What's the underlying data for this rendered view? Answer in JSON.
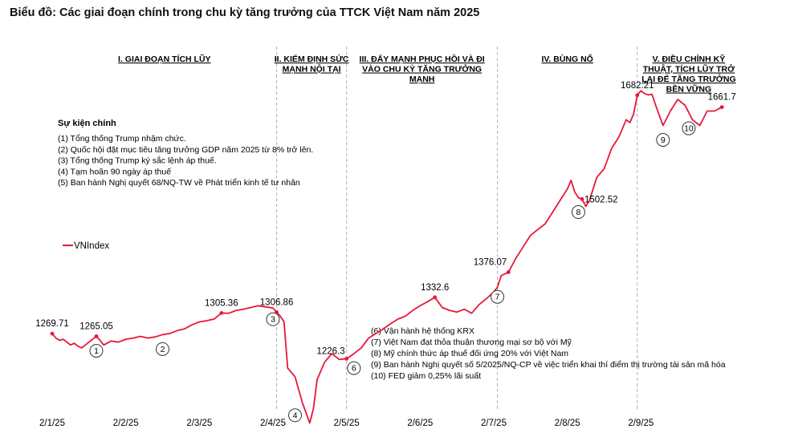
{
  "title": "Biểu đồ: Các giai đoạn chính trong chu kỳ tăng trưởng của TTCK Việt Nam năm 2025",
  "phases": [
    {
      "lines": [
        "I. GIAI ĐOẠN TÍCH LŨY"
      ]
    },
    {
      "lines": [
        "II. KIỂM ĐỊNH SỨC",
        "MẠNH NỘI TẠI"
      ]
    },
    {
      "lines": [
        "III. ĐẨY MẠNH PHỤC HỒI VÀ ĐI",
        "VÀO CHU KỲ TĂNG TRƯỞNG",
        "MẠNH"
      ]
    },
    {
      "lines": [
        "IV. BÙNG NỔ"
      ]
    },
    {
      "lines": [
        "V. ĐIỀU CHỈNH KỸ",
        "THUẬT, TÍCH LŨY TRỞ",
        "LẠI ĐỂ TĂNG TRƯỞNG",
        "BỀN VỮNG"
      ]
    }
  ],
  "events_block_1": {
    "title": "Sự kiện chính",
    "items": [
      "(1) Tổng thống Trump nhậm chức.",
      "(2) Quốc hội đặt mục tiêu tăng trưởng GDP năm 2025 từ 8% trở lên.",
      "(3) Tổng thống Trump ký sắc lệnh áp thuế.",
      "(4) Tạm hoãn 90 ngày áp thuế",
      "(5) Ban hành Nghị quyết 68/NQ-TW về Phát triển kinh tế tư nhân"
    ]
  },
  "events_block_2": {
    "items": [
      "(6) Vận hành hệ thống KRX",
      "(7) Việt Nam đạt thỏa thuận thương mại sơ bộ với Mỹ",
      "(8) Mỹ chính thức áp thuế đối ứng 20% với Việt Nam",
      "(9) Ban hành Nghị quyết số 5/2025/NQ-CP về việc triển khai thí điểm thị trường tài sản mã hóa",
      "(10) FED giảm 0,25% lãi suất"
    ]
  },
  "chart_data": {
    "type": "line",
    "title": "Biểu đồ: Các giai đoạn chính trong chu kỳ tăng trưởng của TTCK Việt Nam năm 2025",
    "xlabel": "",
    "ylabel": "",
    "legend": {
      "label": "VNIndex",
      "position": "middle-left"
    },
    "x_ticks": [
      "2/1/25",
      "2/2/25",
      "2/3/25",
      "2/4/25",
      "2/5/25",
      "2/6/25",
      "2/7/25",
      "2/8/25",
      "2/9/25"
    ],
    "x_range": [
      0,
      9.6
    ],
    "y_range": [
      1070,
      1750
    ],
    "grid": false,
    "phase_boundaries": [
      3.05,
      4.0,
      6.05,
      7.95
    ],
    "series": [
      {
        "name": "VNIndex",
        "color": "#e8173a",
        "points": [
          [
            0.0,
            1269.71
          ],
          [
            0.05,
            1262
          ],
          [
            0.1,
            1258
          ],
          [
            0.15,
            1260
          ],
          [
            0.2,
            1255
          ],
          [
            0.25,
            1250
          ],
          [
            0.3,
            1253
          ],
          [
            0.35,
            1248
          ],
          [
            0.4,
            1245
          ],
          [
            0.45,
            1250
          ],
          [
            0.5,
            1255
          ],
          [
            0.55,
            1260
          ],
          [
            0.6,
            1265.05
          ],
          [
            0.65,
            1258
          ],
          [
            0.7,
            1250
          ],
          [
            0.8,
            1257
          ],
          [
            0.9,
            1255
          ],
          [
            1.0,
            1260
          ],
          [
            1.1,
            1262
          ],
          [
            1.2,
            1265
          ],
          [
            1.3,
            1262
          ],
          [
            1.4,
            1264
          ],
          [
            1.5,
            1268
          ],
          [
            1.6,
            1270
          ],
          [
            1.7,
            1275
          ],
          [
            1.8,
            1278
          ],
          [
            1.9,
            1285
          ],
          [
            2.0,
            1290
          ],
          [
            2.1,
            1292
          ],
          [
            2.2,
            1295
          ],
          [
            2.3,
            1305.36
          ],
          [
            2.4,
            1305
          ],
          [
            2.5,
            1310
          ],
          [
            2.6,
            1312
          ],
          [
            2.7,
            1315
          ],
          [
            2.8,
            1318
          ],
          [
            2.9,
            1316
          ],
          [
            3.0,
            1314
          ],
          [
            3.05,
            1306.86
          ],
          [
            3.1,
            1300
          ],
          [
            3.15,
            1290
          ],
          [
            3.2,
            1210
          ],
          [
            3.3,
            1195
          ],
          [
            3.4,
            1150
          ],
          [
            3.5,
            1115
          ],
          [
            3.55,
            1140
          ],
          [
            3.6,
            1190
          ],
          [
            3.7,
            1220
          ],
          [
            3.8,
            1235
          ],
          [
            3.9,
            1225
          ],
          [
            4.0,
            1226.3
          ],
          [
            4.1,
            1235
          ],
          [
            4.2,
            1245
          ],
          [
            4.3,
            1262
          ],
          [
            4.4,
            1270
          ],
          [
            4.5,
            1278
          ],
          [
            4.6,
            1287
          ],
          [
            4.7,
            1295
          ],
          [
            4.8,
            1300
          ],
          [
            4.9,
            1310
          ],
          [
            5.0,
            1318
          ],
          [
            5.1,
            1325
          ],
          [
            5.2,
            1332.6
          ],
          [
            5.3,
            1315
          ],
          [
            5.4,
            1310
          ],
          [
            5.5,
            1307
          ],
          [
            5.6,
            1312
          ],
          [
            5.7,
            1305
          ],
          [
            5.8,
            1320
          ],
          [
            5.9,
            1330
          ],
          [
            6.0,
            1342
          ],
          [
            6.05,
            1350
          ],
          [
            6.1,
            1370
          ],
          [
            6.2,
            1376.07
          ],
          [
            6.3,
            1400
          ],
          [
            6.4,
            1420
          ],
          [
            6.5,
            1440
          ],
          [
            6.6,
            1450
          ],
          [
            6.7,
            1460
          ],
          [
            6.8,
            1480
          ],
          [
            6.9,
            1500
          ],
          [
            7.0,
            1520
          ],
          [
            7.05,
            1535
          ],
          [
            7.1,
            1515
          ],
          [
            7.15,
            1505
          ],
          [
            7.2,
            1502.52
          ],
          [
            7.25,
            1490
          ],
          [
            7.3,
            1500
          ],
          [
            7.4,
            1540
          ],
          [
            7.5,
            1555
          ],
          [
            7.6,
            1590
          ],
          [
            7.7,
            1610
          ],
          [
            7.8,
            1640
          ],
          [
            7.85,
            1635
          ],
          [
            7.9,
            1650
          ],
          [
            7.95,
            1682.21
          ],
          [
            8.0,
            1690
          ],
          [
            8.05,
            1685
          ],
          [
            8.1,
            1683
          ],
          [
            8.15,
            1684
          ],
          [
            8.2,
            1665
          ],
          [
            8.3,
            1630
          ],
          [
            8.4,
            1655
          ],
          [
            8.5,
            1675
          ],
          [
            8.6,
            1665
          ],
          [
            8.7,
            1640
          ],
          [
            8.8,
            1630
          ],
          [
            8.9,
            1655
          ],
          [
            9.0,
            1655
          ],
          [
            9.1,
            1661.7
          ]
        ]
      }
    ],
    "value_labels": [
      {
        "text": "1269.71",
        "x": 0.0,
        "y": 1269.71
      },
      {
        "text": "1265.05",
        "x": 0.6,
        "y": 1265.05
      },
      {
        "text": "1305.36",
        "x": 2.3,
        "y": 1305.36
      },
      {
        "text": "1306.86",
        "x": 3.05,
        "y": 1306.86
      },
      {
        "text": "1226.3",
        "x": 4.0,
        "y": 1226.3
      },
      {
        "text": "1332.6",
        "x": 5.2,
        "y": 1332.6
      },
      {
        "text": "1376.07",
        "x": 6.2,
        "y": 1376.07
      },
      {
        "text": "1502.52",
        "x": 7.2,
        "y": 1502.52
      },
      {
        "text": "1682.21",
        "x": 7.95,
        "y": 1682.21
      },
      {
        "text": "1661.7",
        "x": 9.1,
        "y": 1661.7
      }
    ],
    "event_markers": [
      {
        "num": "1",
        "x": 0.6,
        "y": 1265.05
      },
      {
        "num": "2",
        "x": 1.5,
        "y": 1268
      },
      {
        "num": "3",
        "x": 3.0,
        "y": 1314
      },
      {
        "num": "4",
        "x": 3.3,
        "y": 1195
      },
      {
        "num": "6",
        "x": 4.1,
        "y": 1235
      },
      {
        "num": "7",
        "x": 6.05,
        "y": 1350
      },
      {
        "num": "8",
        "x": 7.15,
        "y": 1505
      },
      {
        "num": "9",
        "x": 8.3,
        "y": 1630
      },
      {
        "num": "10",
        "x": 8.65,
        "y": 1650
      }
    ]
  }
}
